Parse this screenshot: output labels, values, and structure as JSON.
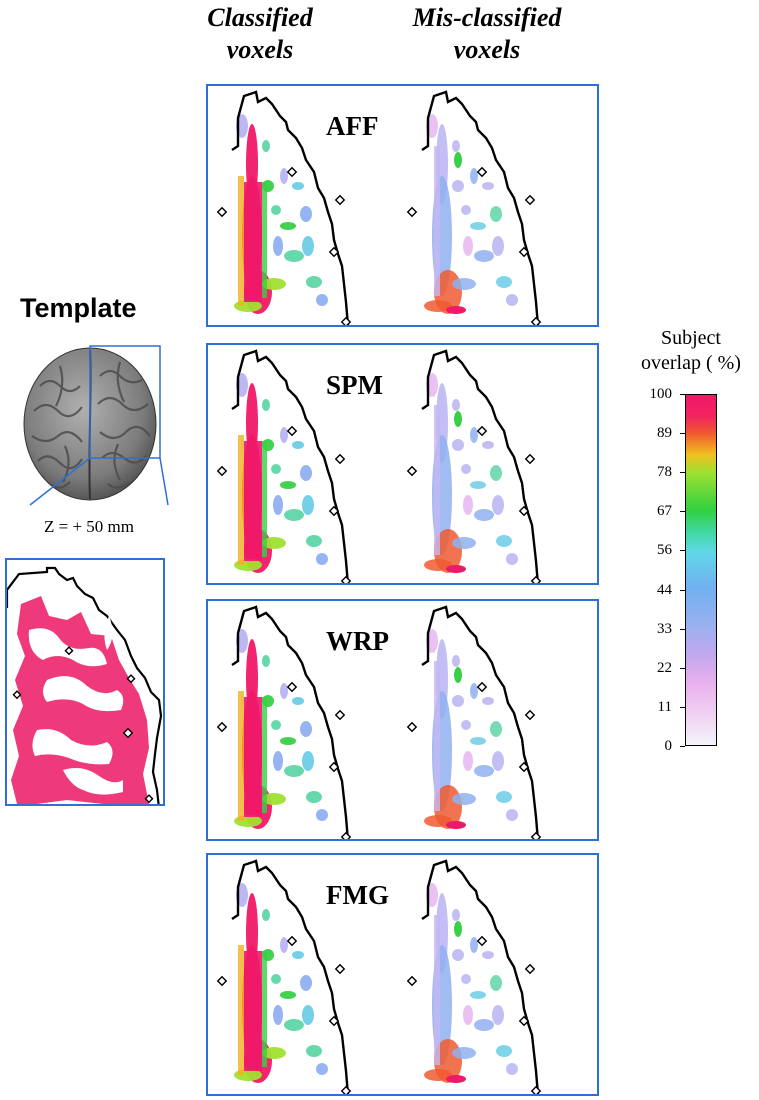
{
  "columns": {
    "classified": [
      "Classified",
      "voxels"
    ],
    "misclassified": [
      "Mis-classified",
      "voxels"
    ]
  },
  "panels": [
    {
      "label": "AFF"
    },
    {
      "label": "SPM"
    },
    {
      "label": "WRP"
    },
    {
      "label": "FMG"
    }
  ],
  "template": {
    "title": "Template",
    "z_label": "Z = + 50 mm"
  },
  "scale": {
    "title": [
      "Subject",
      "overlap ( %)"
    ],
    "ticks": [
      "100",
      "89",
      "78",
      "67",
      "56",
      "44",
      "33",
      "22",
      "11",
      "0"
    ]
  },
  "colors": {
    "panel_border": "#2f6fd6",
    "template_fill": "#ee3a7a",
    "brain_gray": "#8a8a8a"
  }
}
